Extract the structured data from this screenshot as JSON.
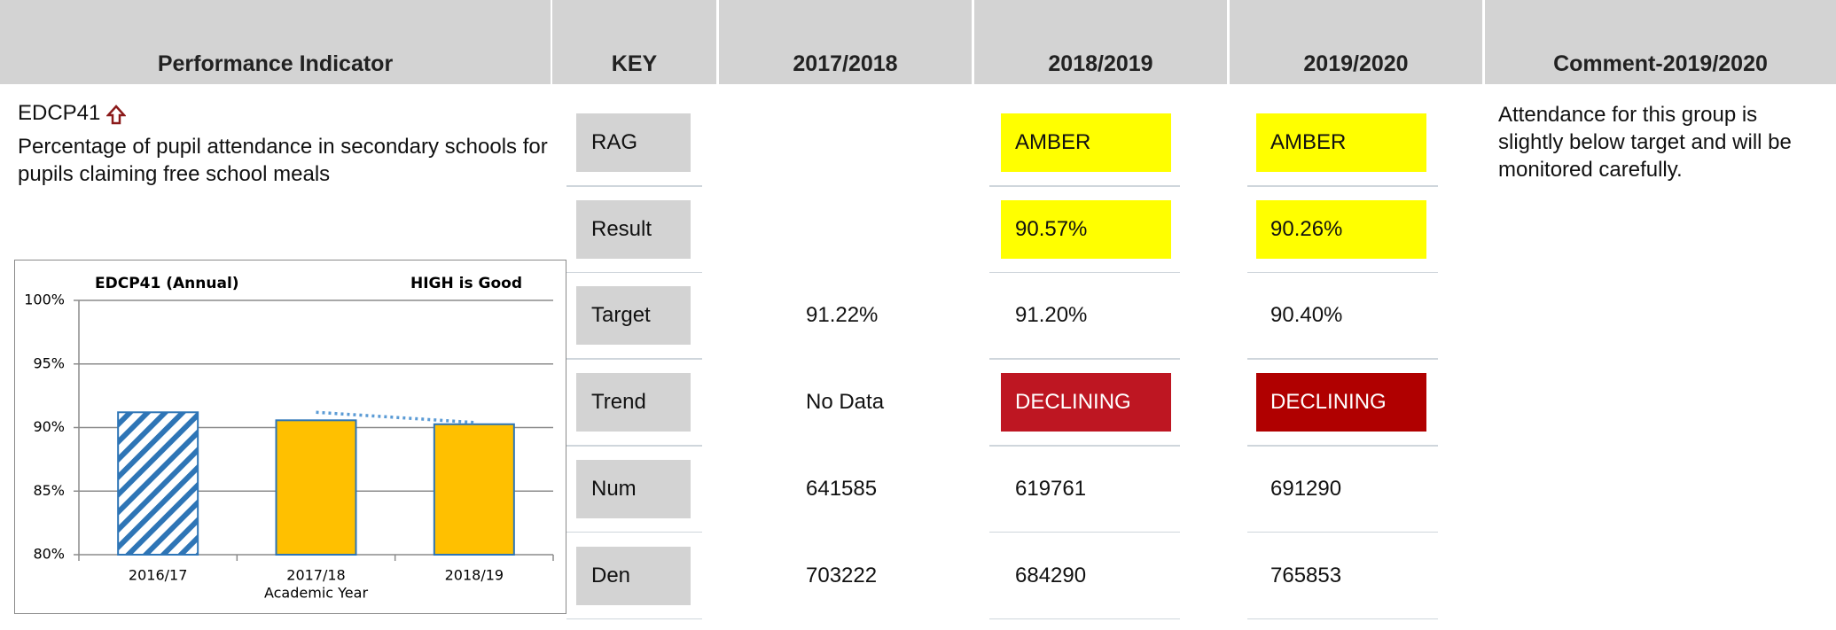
{
  "table": {
    "header": [
      "Performance Indicator",
      "KEY",
      "2017/2018",
      "2018/2019",
      "2019/2020",
      "Comment-2019/2020"
    ],
    "indicator": {
      "code": "EDCP41",
      "description": "Percentage of pupil attendance in secondary schools for pupils claiming free school meals"
    },
    "rows": [
      {
        "key": "RAG",
        "values": [
          null,
          "AMBER",
          "AMBER"
        ],
        "fills": [
          null,
          "#ffff00",
          "#ffff00"
        ]
      },
      {
        "key": "Result",
        "values": [
          null,
          "90.57%",
          "90.26%"
        ],
        "fills": [
          null,
          "#ffff00",
          "#ffff00"
        ]
      },
      {
        "key": "Target",
        "values": [
          "91.22%",
          "91.20%",
          "90.40%"
        ]
      },
      {
        "key": "Trend",
        "values": [
          "No Data",
          "DECLINING",
          "DECLINING"
        ],
        "fills": [
          null,
          "#be1622",
          "#b00000"
        ],
        "text_colors": [
          null,
          "#ffffff",
          "#ffffff"
        ]
      },
      {
        "key": "Num",
        "values": [
          "641585",
          "619761",
          "691290"
        ]
      },
      {
        "key": "Den",
        "values": [
          "703222",
          "684290",
          "765853"
        ]
      }
    ],
    "comment": "Attendance for this group is slightly below target and will be monitored carefully."
  },
  "chart": {
    "type": "bar",
    "title": "EDCP41 (Annual)",
    "annotation": "HIGH is Good",
    "categories": [
      "2016/17",
      "2017/18",
      "2018/19"
    ],
    "x_label": "Academic Year",
    "values": [
      91.2,
      90.57,
      90.26
    ],
    "bar_styles": [
      "hatched",
      "solid",
      "solid"
    ],
    "color": "#ffc000",
    "edge_color": "#2e75b6",
    "target_line": {
      "values": [
        null,
        91.2,
        90.4
      ],
      "color": "#5b9bd5",
      "style": "dotted"
    },
    "ylim": [
      80,
      100
    ],
    "yticks": [
      {
        "value": 80,
        "label": "80%"
      },
      {
        "value": 85,
        "label": "85%"
      },
      {
        "value": 90,
        "label": "90%"
      },
      {
        "value": 95,
        "label": "95%"
      },
      {
        "value": 100,
        "label": "100%"
      }
    ],
    "grid": true
  }
}
